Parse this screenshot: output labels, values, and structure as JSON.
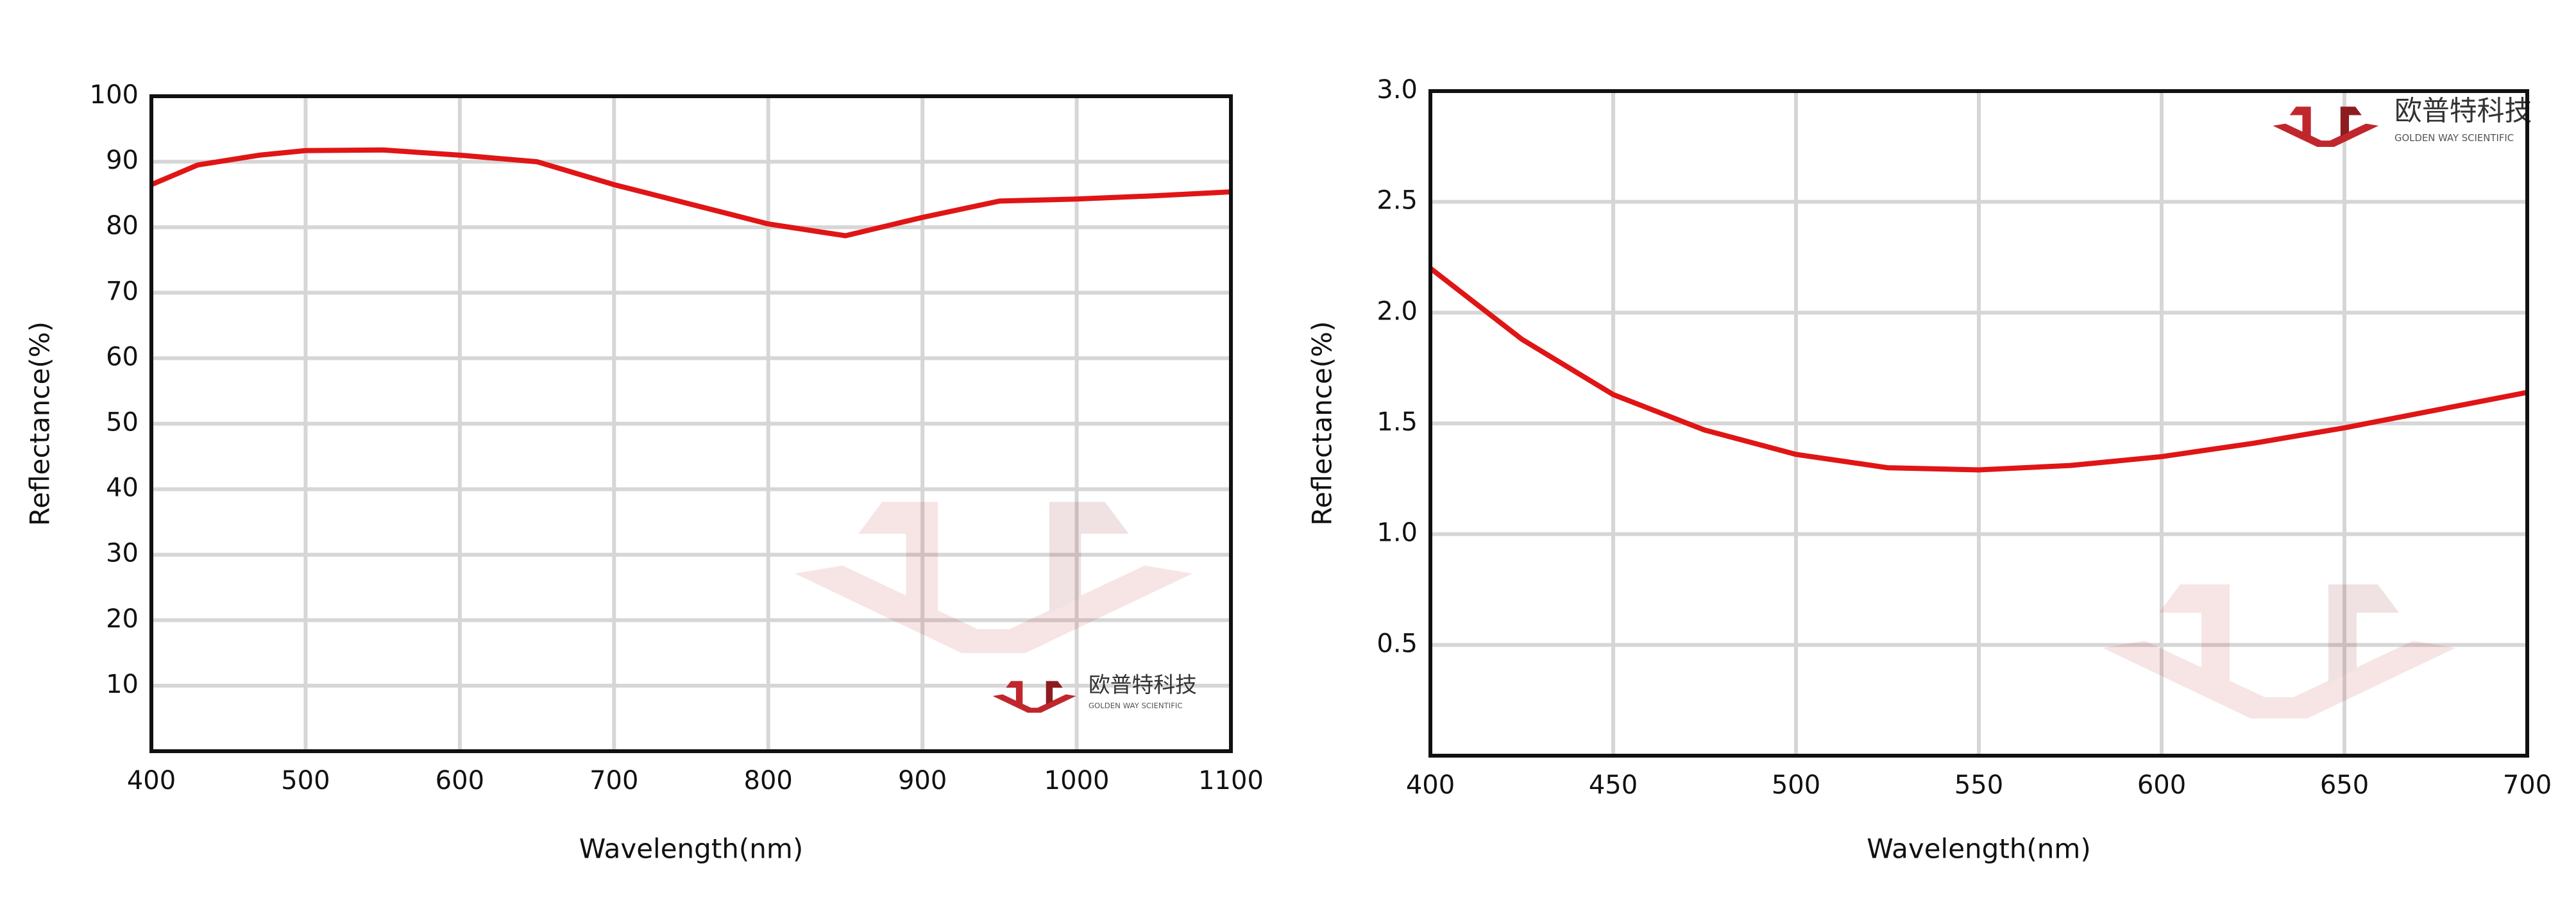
{
  "chart_data": [
    {
      "type": "line",
      "x_label": "Wavelength(nm)",
      "y_label": "Reflectance(%)",
      "x": [
        400,
        430,
        470,
        500,
        550,
        600,
        650,
        700,
        750,
        800,
        850,
        900,
        950,
        1000,
        1050,
        1100
      ],
      "series": [
        {
          "name": "Reflectance",
          "color": "#e01515",
          "values": [
            86.5,
            89.5,
            91,
            91.7,
            91.8,
            91,
            90,
            86.5,
            83.5,
            80.5,
            78.7,
            81.5,
            84,
            84.3,
            84.8,
            85.4
          ]
        }
      ],
      "xlim": [
        400,
        1100
      ],
      "xticks": [
        400,
        500,
        600,
        700,
        800,
        900,
        1000,
        1100
      ],
      "ylim": [
        0,
        100
      ],
      "yticks": [
        10,
        20,
        30,
        40,
        50,
        60,
        70,
        80,
        90,
        100
      ],
      "grid": true
    },
    {
      "type": "line",
      "x_label": "Wavelength(nm)",
      "y_label": "Reflectance(%)",
      "x": [
        400,
        425,
        450,
        475,
        500,
        525,
        550,
        575,
        600,
        625,
        650,
        675,
        700
      ],
      "series": [
        {
          "name": "Reflectance",
          "color": "#e01515",
          "values": [
            2.2,
            1.88,
            1.63,
            1.47,
            1.36,
            1.3,
            1.29,
            1.31,
            1.35,
            1.41,
            1.48,
            1.56,
            1.64
          ]
        }
      ],
      "xlim": [
        400,
        700
      ],
      "xticks": [
        400,
        450,
        500,
        550,
        600,
        650,
        700
      ],
      "ylim": [
        0,
        3
      ],
      "yticks": [
        0.5,
        {
          "value": 1,
          "label": "1.0"
        },
        1.5,
        {
          "value": 2,
          "label": "2.0"
        },
        2.5,
        {
          "value": 3,
          "label": "3.0"
        }
      ],
      "grid": true
    }
  ],
  "logo": {
    "name": "欧普特科技",
    "subtitle": "GOLDEN WAY SCIENTIFIC"
  }
}
